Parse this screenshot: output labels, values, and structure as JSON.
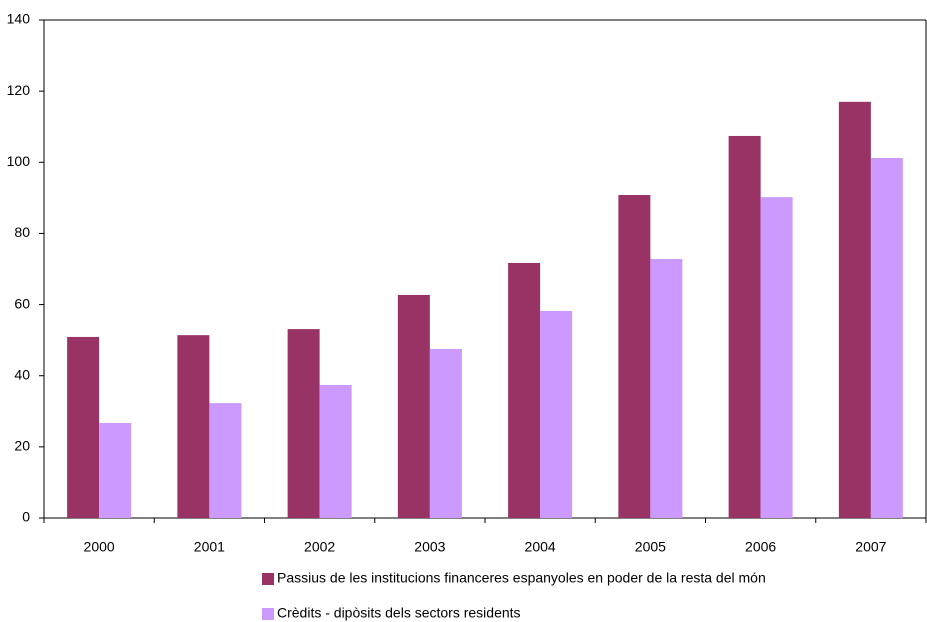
{
  "chart_data": {
    "type": "bar",
    "categories": [
      "2000",
      "2001",
      "2002",
      "2003",
      "2004",
      "2005",
      "2006",
      "2007"
    ],
    "series": [
      {
        "name": "Passius de les institucions financeres espanyoles en poder de la resta del món",
        "color": "#993366",
        "values": [
          50.9,
          51.4,
          53.1,
          62.7,
          71.7,
          90.8,
          107.4,
          117
        ]
      },
      {
        "name": "Crèdits - dipòsits dels sectors residents",
        "color": "#cc99ff",
        "values": [
          26.7,
          32.3,
          37.4,
          47.5,
          58.2,
          72.8,
          90.2,
          101.2
        ]
      }
    ],
    "ylim": [
      0,
      140
    ],
    "yticks": [
      0,
      20,
      40,
      60,
      80,
      100,
      120,
      140
    ],
    "grid": false,
    "legend": "bottom"
  }
}
